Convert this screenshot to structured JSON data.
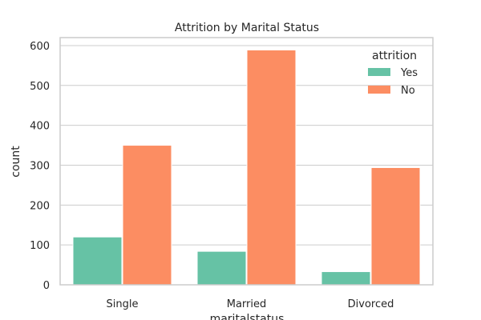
{
  "chart_data": {
    "type": "bar",
    "title": "Attrition by Marital Status",
    "xlabel": "maritalstatus",
    "ylabel": "count",
    "categories": [
      "Single",
      "Married",
      "Divorced"
    ],
    "series": [
      {
        "name": "Yes",
        "values": [
          120,
          84,
          33
        ],
        "color": "#66c2a5"
      },
      {
        "name": "No",
        "values": [
          350,
          589,
          294
        ],
        "color": "#fc8d62"
      }
    ],
    "ylim": [
      0,
      620
    ],
    "yticks": [
      0,
      100,
      200,
      300,
      400,
      500,
      600
    ],
    "legend": {
      "title": "attrition",
      "placement": "top-right"
    },
    "grid": true
  }
}
